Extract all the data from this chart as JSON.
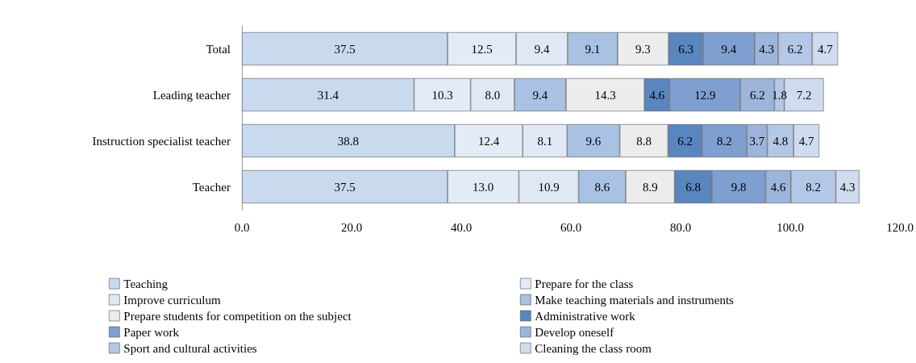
{
  "chart_data": {
    "type": "bar",
    "orientation": "horizontal",
    "stacked": true,
    "categories": [
      "Total",
      "Leading teacher",
      "Instruction specialist teacher",
      "Teacher"
    ],
    "series": [
      {
        "name": "Teaching",
        "color": "#c9d9ee",
        "values": [
          37.5,
          31.4,
          38.8,
          37.5
        ],
        "value_labels": [
          "37.5",
          "31.4",
          "38.8",
          "37.5"
        ]
      },
      {
        "name": "Prepare for the class",
        "color": "#e3ebf7",
        "values": [
          12.5,
          10.3,
          12.4,
          13.0
        ],
        "value_labels": [
          "12.5",
          "10.3",
          "12.4",
          "13.0"
        ]
      },
      {
        "name": "Improve curriculum",
        "color": "#dfe8f4",
        "values": [
          9.4,
          8.0,
          8.1,
          10.9
        ],
        "value_labels": [
          "9.4",
          "8.0",
          "8.1",
          "10.9"
        ]
      },
      {
        "name": "Make teaching materials and instruments",
        "color": "#a9c1e3",
        "values": [
          9.1,
          9.4,
          9.6,
          8.6
        ],
        "value_labels": [
          "9.1",
          "9.4",
          "9.6",
          "8.6"
        ]
      },
      {
        "name": "Prepare students for competition on the subject",
        "color": "#ececec",
        "values": [
          9.3,
          14.3,
          8.8,
          8.9
        ],
        "value_labels": [
          "9.3",
          "14.3",
          "8.8",
          "8.9"
        ]
      },
      {
        "name": "Administrative work",
        "color": "#5a86c0",
        "values": [
          6.3,
          4.6,
          6.2,
          6.8
        ],
        "value_labels": [
          "6.3",
          "4.6",
          "6.2",
          "6.8"
        ]
      },
      {
        "name": "Paper work",
        "color": "#7f9fd0",
        "values": [
          9.4,
          12.9,
          8.2,
          9.8
        ],
        "value_labels": [
          "9.4",
          "12.9",
          "8.2",
          "9.8"
        ]
      },
      {
        "name": "Develop oneself",
        "color": "#9db4db",
        "values": [
          4.3,
          6.2,
          3.7,
          4.6
        ],
        "value_labels": [
          "4.3",
          "6.2",
          "3.7",
          "4.6"
        ]
      },
      {
        "name": "Sport and cultural activities",
        "color": "#b5c7e6",
        "values": [
          6.2,
          1.8,
          4.8,
          8.2
        ],
        "value_labels": [
          "6.2",
          "1.8",
          "4.8",
          "8.2"
        ]
      },
      {
        "name": "Cleaning the class room",
        "color": "#cfdbef",
        "values": [
          4.7,
          7.2,
          4.7,
          4.3
        ],
        "value_labels": [
          "4.7",
          "7.2",
          "4.7",
          "4.3"
        ]
      }
    ],
    "xlim": [
      0,
      120
    ],
    "xticks": [
      {
        "value": 0,
        "label": "0.0"
      },
      {
        "value": 20,
        "label": "20.0"
      },
      {
        "value": 40,
        "label": "40.0"
      },
      {
        "value": 60,
        "label": "60.0"
      },
      {
        "value": 80,
        "label": "80.0"
      },
      {
        "value": 100,
        "label": "100.0"
      },
      {
        "value": 120,
        "label": "120.0"
      }
    ],
    "legend": "bottom",
    "grid": false
  }
}
